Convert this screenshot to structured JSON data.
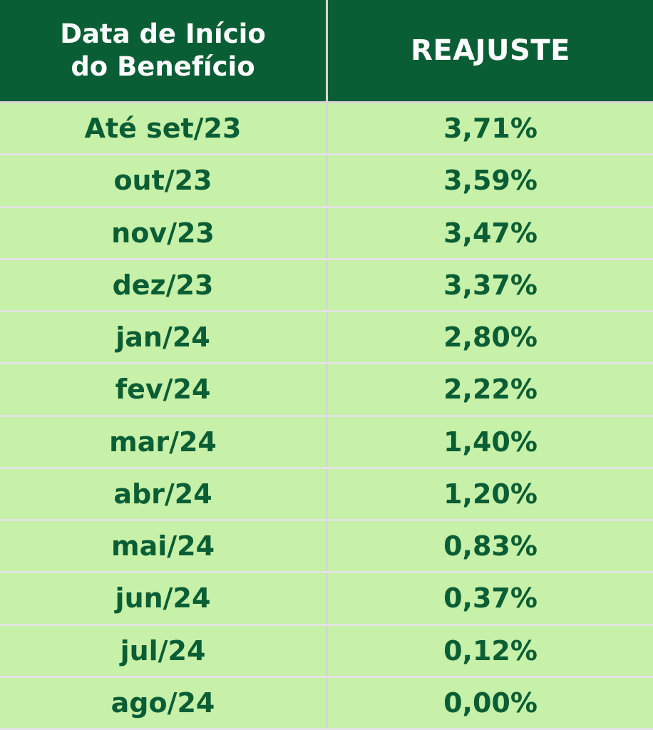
{
  "header": {
    "col1_line1": "Data de Início",
    "col1_line2": "do Benefício",
    "col2": "REAJUSTE"
  },
  "rows": [
    {
      "date": "Até set/23",
      "value": "3,71%"
    },
    {
      "date": "out/23",
      "value": "3,59%"
    },
    {
      "date": "nov/23",
      "value": "3,47%"
    },
    {
      "date": "dez/23",
      "value": "3,37%"
    },
    {
      "date": "jan/24",
      "value": "2,80%"
    },
    {
      "date": "fev/24",
      "value": "2,22%"
    },
    {
      "date": "mar/24",
      "value": "1,40%"
    },
    {
      "date": "abr/24",
      "value": "1,20%"
    },
    {
      "date": "mai/24",
      "value": "0,83%"
    },
    {
      "date": "jun/24",
      "value": "0,37%"
    },
    {
      "date": "jul/24",
      "value": "0,12%"
    },
    {
      "date": "ago/24",
      "value": "0,00%"
    }
  ],
  "colors": {
    "header_bg": "#0a5e35",
    "header_text": "#ffffff",
    "row_bg": "#c7f0a8",
    "row_text": "#0a5e35",
    "divider": "#d6d6d6"
  }
}
